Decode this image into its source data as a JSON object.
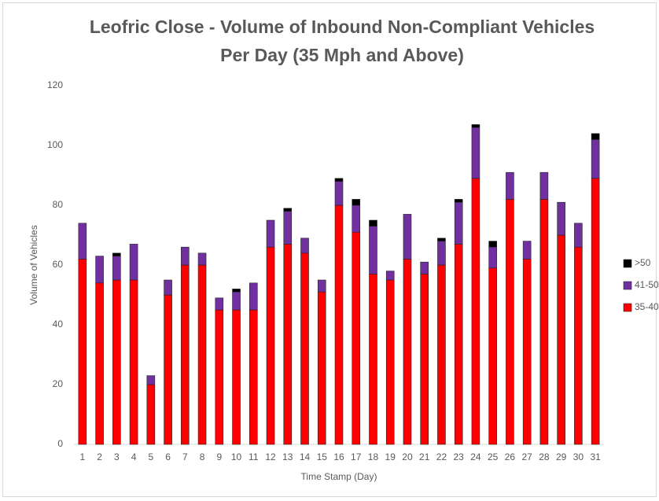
{
  "chart_data": {
    "type": "stacked_bar",
    "title": "Leofric Close - Volume of Inbound Non-Compliant Vehicles Per Day (35 Mph and Above)",
    "x_label": "Time Stamp (Day)",
    "y_label": "Volume of Vehicles",
    "categories": [
      "1",
      "2",
      "3",
      "4",
      "5",
      "6",
      "7",
      "8",
      "9",
      "10",
      "11",
      "12",
      "13",
      "14",
      "15",
      "16",
      "17",
      "18",
      "19",
      "20",
      "21",
      "22",
      "23",
      "24",
      "25",
      "26",
      "27",
      "28",
      "29",
      "30",
      "31"
    ],
    "series": [
      {
        "name": "35-40",
        "color": "#ff0000",
        "values": [
          62,
          54,
          55,
          55,
          20,
          50,
          60,
          60,
          45,
          45,
          45,
          66,
          67,
          64,
          51,
          80,
          71,
          57,
          55,
          62,
          57,
          60,
          67,
          89,
          59,
          82,
          62,
          82,
          70,
          66,
          89
        ]
      },
      {
        "name": "41-50",
        "color": "#7030a0",
        "values": [
          12,
          9,
          8,
          12,
          3,
          5,
          6,
          4,
          4,
          6,
          9,
          9,
          11,
          5,
          4,
          8,
          9,
          16,
          3,
          15,
          4,
          8,
          14,
          17,
          7,
          9,
          6,
          9,
          11,
          8,
          13
        ]
      },
      {
        "name": ">50",
        "color": "#000000",
        "values": [
          0,
          0,
          1,
          0,
          0,
          0,
          0,
          0,
          0,
          1,
          0,
          0,
          1,
          0,
          0,
          1,
          2,
          2,
          0,
          0,
          0,
          1,
          1,
          1,
          2,
          0,
          0,
          0,
          0,
          0,
          2
        ]
      }
    ],
    "ylim": [
      0,
      120
    ],
    "yticks": [
      0,
      20,
      40,
      60,
      80,
      100,
      120
    ],
    "grid": false,
    "legend": "right"
  }
}
